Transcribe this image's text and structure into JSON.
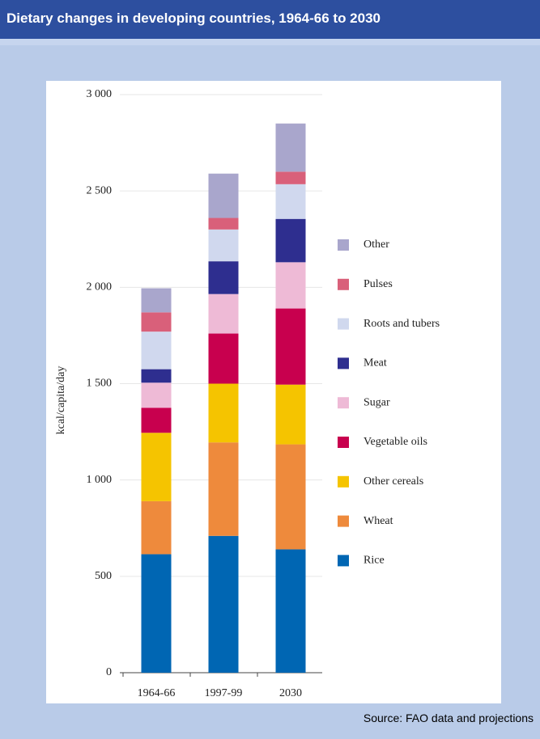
{
  "header": {
    "title": "Dietary changes in developing countries, 1964-66 to 2030"
  },
  "chart_data": {
    "type": "stacked-bar",
    "y_label": "kcal/capita/day",
    "categories": [
      "1964-66",
      "1997-99",
      "2030"
    ],
    "series": [
      {
        "name": "Rice",
        "color": "#0066b3",
        "values": [
          615,
          710,
          640
        ]
      },
      {
        "name": "Wheat",
        "color": "#ee8a3c",
        "values": [
          275,
          485,
          545
        ]
      },
      {
        "name": "Other cereals",
        "color": "#f5c400",
        "values": [
          355,
          305,
          310
        ]
      },
      {
        "name": "Vegetable oils",
        "color": "#c8004e",
        "values": [
          130,
          260,
          395
        ]
      },
      {
        "name": "Sugar",
        "color": "#eebad6",
        "values": [
          130,
          205,
          240
        ]
      },
      {
        "name": "Meat",
        "color": "#2e2e8f",
        "values": [
          70,
          170,
          225
        ]
      },
      {
        "name": "Roots and tubers",
        "color": "#d0d8ee",
        "values": [
          195,
          165,
          180
        ]
      },
      {
        "name": "Pulses",
        "color": "#d9607a",
        "values": [
          100,
          60,
          65
        ]
      },
      {
        "name": "Other",
        "color": "#a9a6cc",
        "values": [
          125,
          230,
          250
        ]
      }
    ],
    "ylim": [
      0,
      3000
    ],
    "yticks": [
      0,
      500,
      {
        "value": 1000,
        "label": "1 000"
      },
      {
        "value": 1500,
        "label": "1 500"
      },
      {
        "value": 2000,
        "label": "2 000"
      },
      {
        "value": 2500,
        "label": "2 500"
      },
      {
        "value": 3000,
        "label": "3 000"
      }
    ],
    "grid": true,
    "legend": "right"
  },
  "footer": {
    "source": "Source: FAO data and projections"
  }
}
